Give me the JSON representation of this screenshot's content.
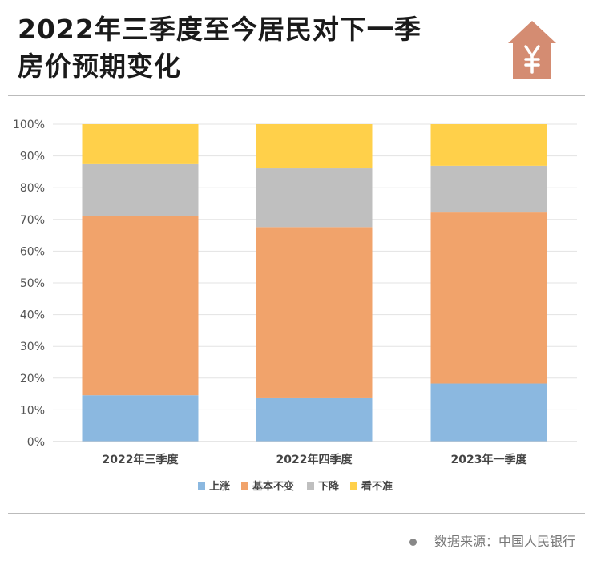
{
  "title_line1": "2022年三季度至今居民对下一季",
  "title_line2": "房价预期变化",
  "source": "数据来源：中国人民银行",
  "icon": "house-yuan-icon",
  "chart_data": {
    "type": "bar",
    "stacked": true,
    "categories": [
      "2022年三季度",
      "2022年四季度",
      "2023年一季度"
    ],
    "series": [
      {
        "name": "上涨",
        "color": "#8bb8e0",
        "values": [
          14.6,
          13.9,
          18.3
        ]
      },
      {
        "name": "基本不变",
        "color": "#f1a36b",
        "values": [
          56.5,
          53.7,
          53.9
        ]
      },
      {
        "name": "下降",
        "color": "#bfbfbf",
        "values": [
          16.3,
          18.5,
          14.7
        ]
      },
      {
        "name": "看不准",
        "color": "#ffd04a",
        "values": [
          12.6,
          13.9,
          13.1
        ]
      }
    ],
    "ylim": [
      0,
      100
    ],
    "yticks": [
      "0%",
      "10%",
      "20%",
      "30%",
      "40%",
      "50%",
      "60%",
      "70%",
      "80%",
      "90%",
      "100%"
    ],
    "grid": true,
    "legend": "bottom"
  }
}
